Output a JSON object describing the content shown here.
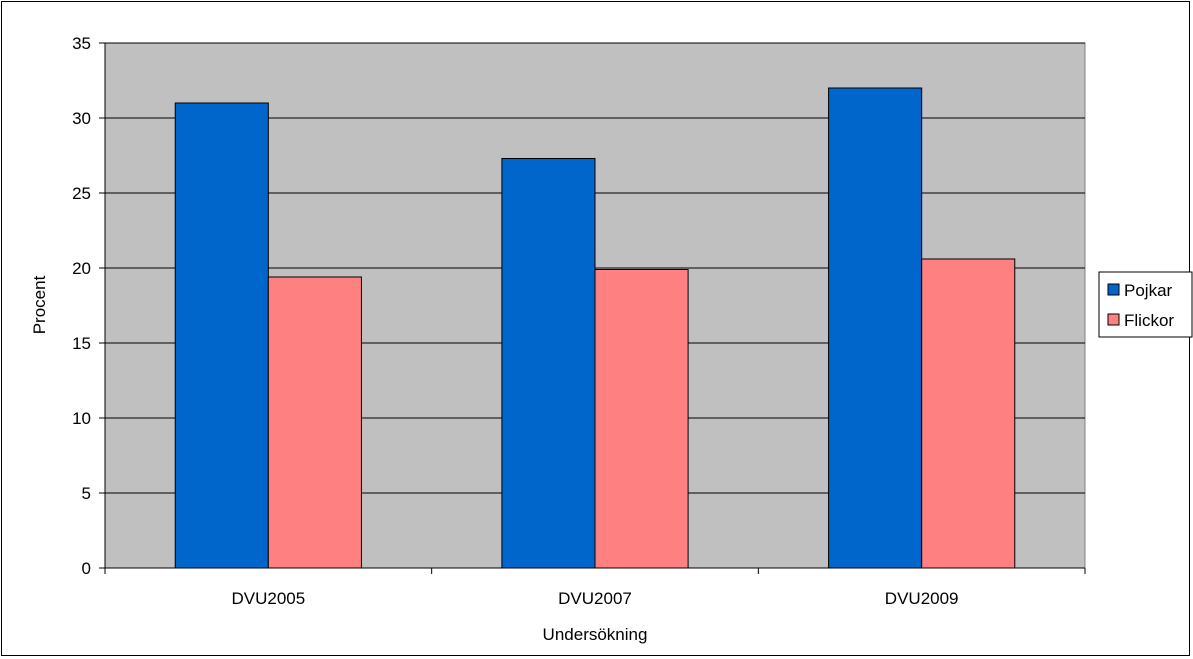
{
  "chart_data": {
    "type": "bar",
    "categories": [
      "DVU2005",
      "DVU2007",
      "DVU2009"
    ],
    "series": [
      {
        "name": "Pojkar",
        "values": [
          31.0,
          27.3,
          32.0
        ],
        "color": "#0066CC"
      },
      {
        "name": "Flickor",
        "values": [
          19.4,
          19.9,
          20.6
        ],
        "color": "#FF8080"
      }
    ],
    "xlabel": "Undersökning",
    "ylabel": "Procent",
    "ylim": [
      0,
      35
    ],
    "yticks": [
      0,
      5,
      10,
      15,
      20,
      25,
      30,
      35
    ],
    "grid": true,
    "plot_background": "#C0C0C0",
    "legend_position": "right"
  }
}
